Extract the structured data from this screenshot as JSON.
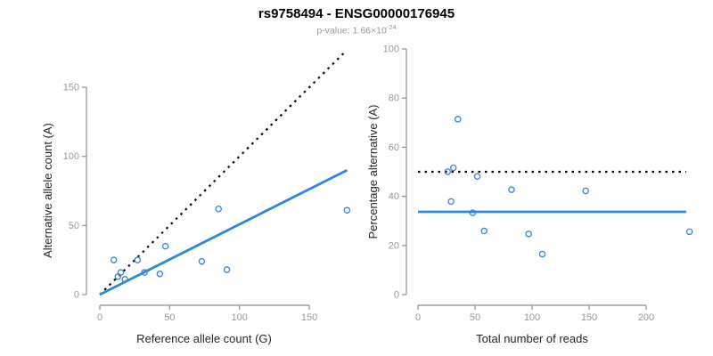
{
  "page_title": "rs9758494 - ENSG00000176945",
  "subtitle": {
    "prefix": "p-value: 1.66×10",
    "exponent": "-24"
  },
  "colors": {
    "point_blue": "#2e86e0",
    "line_blue": "#2e86e0",
    "dashed_black": "#000000",
    "axis_gray": "#8f8f8f",
    "tick_label_gray": "#999999",
    "axis_title_color": "#262626",
    "title_color": "#000000",
    "subtitle_color": "#9a9a9a",
    "background": "#ffffff"
  },
  "chart_data": [
    {
      "type": "scatter",
      "panel": "left",
      "xlabel": "Reference allele count (G)",
      "ylabel": "Alternative allele count (A)",
      "xticks": [
        0,
        50,
        100,
        150
      ],
      "yticks": [
        0,
        50,
        100,
        150
      ],
      "xlim": [
        0,
        178
      ],
      "ylim": [
        0,
        180
      ],
      "grid": false,
      "legend_position": "none",
      "points": [
        [
          10,
          25
        ],
        [
          13,
          13
        ],
        [
          15,
          16
        ],
        [
          18,
          11
        ],
        [
          27,
          25
        ],
        [
          32,
          16
        ],
        [
          43,
          15
        ],
        [
          47,
          35
        ],
        [
          73,
          24
        ],
        [
          85,
          62
        ],
        [
          91,
          18
        ],
        [
          177,
          61
        ]
      ],
      "lines": [
        {
          "name": "identity-line",
          "style": "dashed",
          "color": "#000000",
          "x1": 0,
          "y1": 0,
          "x2": 175,
          "y2": 175
        },
        {
          "name": "regression-line",
          "style": "solid",
          "color": "#2e86e0",
          "x1": 0,
          "y1": 0,
          "x2": 177,
          "y2": 90
        }
      ]
    },
    {
      "type": "scatter",
      "panel": "right",
      "xlabel": "Total number of reads",
      "ylabel": "Percentage alternative (A)",
      "xticks": [
        0,
        50,
        100,
        150,
        200
      ],
      "yticks": [
        0,
        20,
        40,
        60,
        80,
        100
      ],
      "xlim": [
        0,
        240
      ],
      "ylim": [
        0,
        100
      ],
      "grid": false,
      "legend_position": "none",
      "points": [
        [
          35,
          71.4
        ],
        [
          26,
          50.0
        ],
        [
          31,
          51.6
        ],
        [
          29,
          37.9
        ],
        [
          52,
          48.1
        ],
        [
          48,
          33.3
        ],
        [
          58,
          25.9
        ],
        [
          82,
          42.7
        ],
        [
          97,
          24.7
        ],
        [
          109,
          16.5
        ],
        [
          147,
          42.2
        ],
        [
          238,
          25.6
        ]
      ],
      "lines": [
        {
          "name": "expected-50pct-line",
          "style": "dashed",
          "color": "#000000",
          "x1": 0,
          "y1": 50,
          "x2": 235,
          "y2": 50
        },
        {
          "name": "mean-percentage-line",
          "style": "solid",
          "color": "#2e86e0",
          "x1": 0,
          "y1": 33.7,
          "x2": 235,
          "y2": 33.7
        }
      ]
    }
  ]
}
